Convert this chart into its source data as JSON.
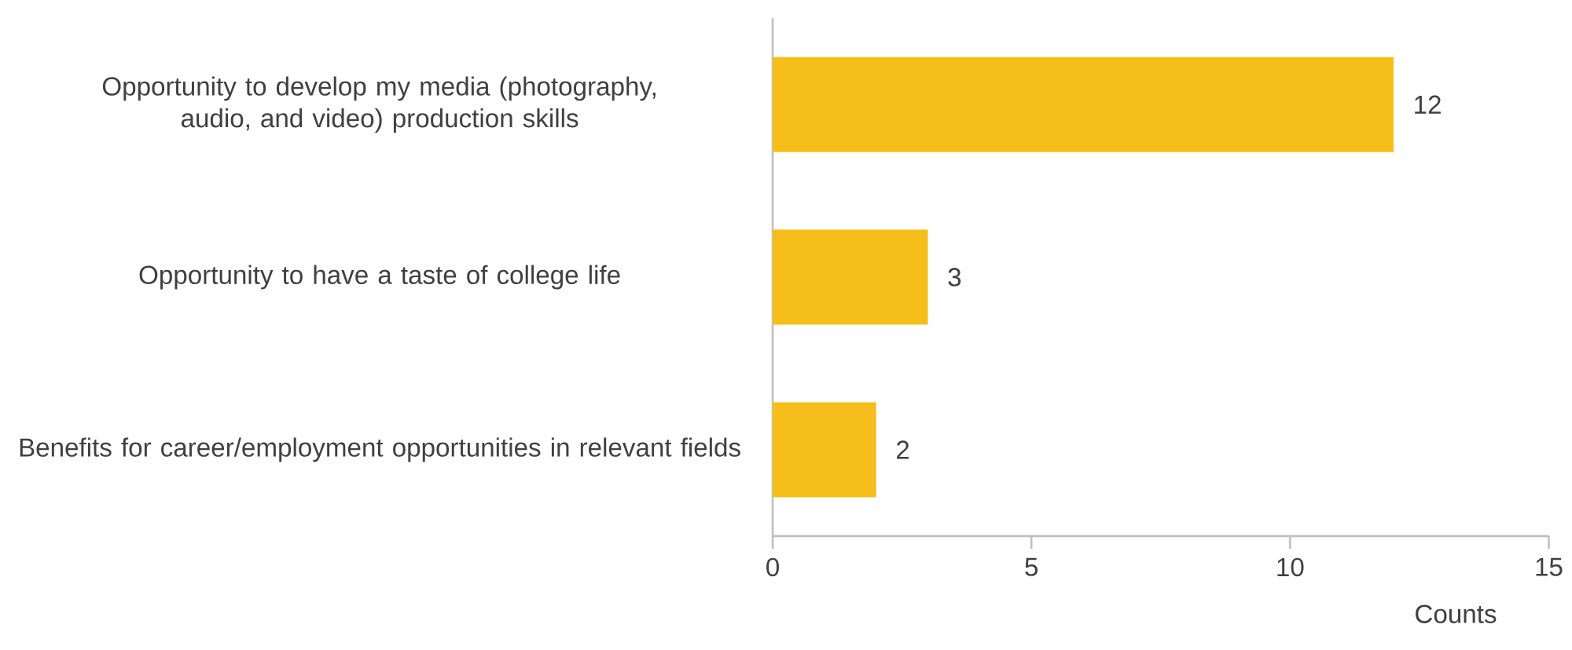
{
  "chart_data": {
    "type": "bar",
    "orientation": "horizontal",
    "categories": [
      "Opportunity to develop my media (photography, audio, and video) production skills",
      "Opportunity to have a taste of college life",
      "Benefits for career/employment opportunities in relevant fields"
    ],
    "values": [
      12,
      3,
      2
    ],
    "color": "#f6be1a",
    "xlim": [
      0,
      15
    ],
    "xticks": [
      0,
      5,
      10,
      15
    ],
    "xlabel": "Counts",
    "data_labels": true
  }
}
